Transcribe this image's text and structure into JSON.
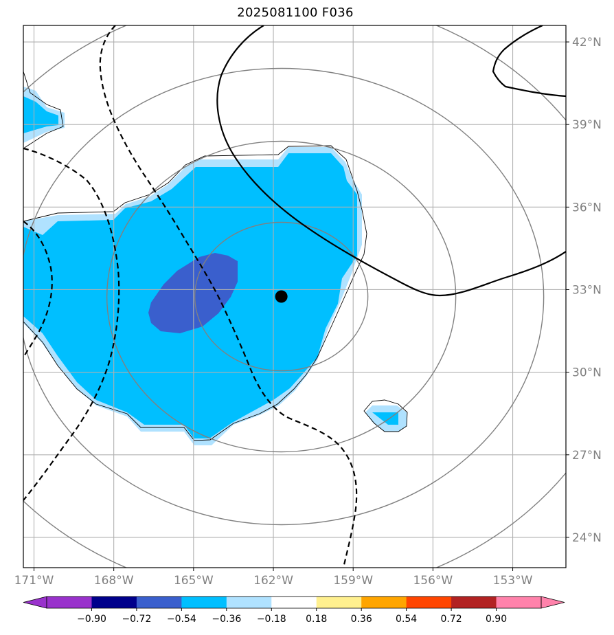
{
  "title": "2025081100 F036",
  "map": {
    "lon_range": [
      -171.4,
      -151.0
    ],
    "lat_range": [
      22.9,
      42.6
    ],
    "lon_ticks": [
      {
        "value": -171,
        "label": "171°W"
      },
      {
        "value": -168,
        "label": "168°W"
      },
      {
        "value": -165,
        "label": "165°W"
      },
      {
        "value": -162,
        "label": "162°W"
      },
      {
        "value": -159,
        "label": "159°W"
      },
      {
        "value": -156,
        "label": "156°W"
      },
      {
        "value": -153,
        "label": "153°W"
      }
    ],
    "lat_ticks": [
      {
        "value": 42,
        "label": "42°N"
      },
      {
        "value": 39,
        "label": "39°N"
      },
      {
        "value": 36,
        "label": "36°N"
      },
      {
        "value": 33,
        "label": "33°N"
      },
      {
        "value": 30,
        "label": "30°N"
      },
      {
        "value": 27,
        "label": "27°N"
      },
      {
        "value": 24,
        "label": "24°N"
      }
    ],
    "center": {
      "lon": -161.7,
      "lat": 32.75
    },
    "range_ring_count": 4,
    "colors": {
      "grid": "#b0b0b0",
      "ring": "#808080",
      "contour": "#000000",
      "center_marker": "#000000"
    }
  },
  "colorbar": {
    "colors": [
      "#9932cc",
      "#00008b",
      "#3a5fcd",
      "#00bfff",
      "#b0e2ff",
      "#ffffff",
      "#fff08f",
      "#ffa500",
      "#ff4500",
      "#b22222",
      "#ff82ab"
    ],
    "labels": [
      "−0.90",
      "−0.72",
      "−0.54",
      "−0.36",
      "−0.18",
      "0.18",
      "0.36",
      "0.54",
      "0.72",
      "0.90"
    ],
    "extend": "both"
  }
}
